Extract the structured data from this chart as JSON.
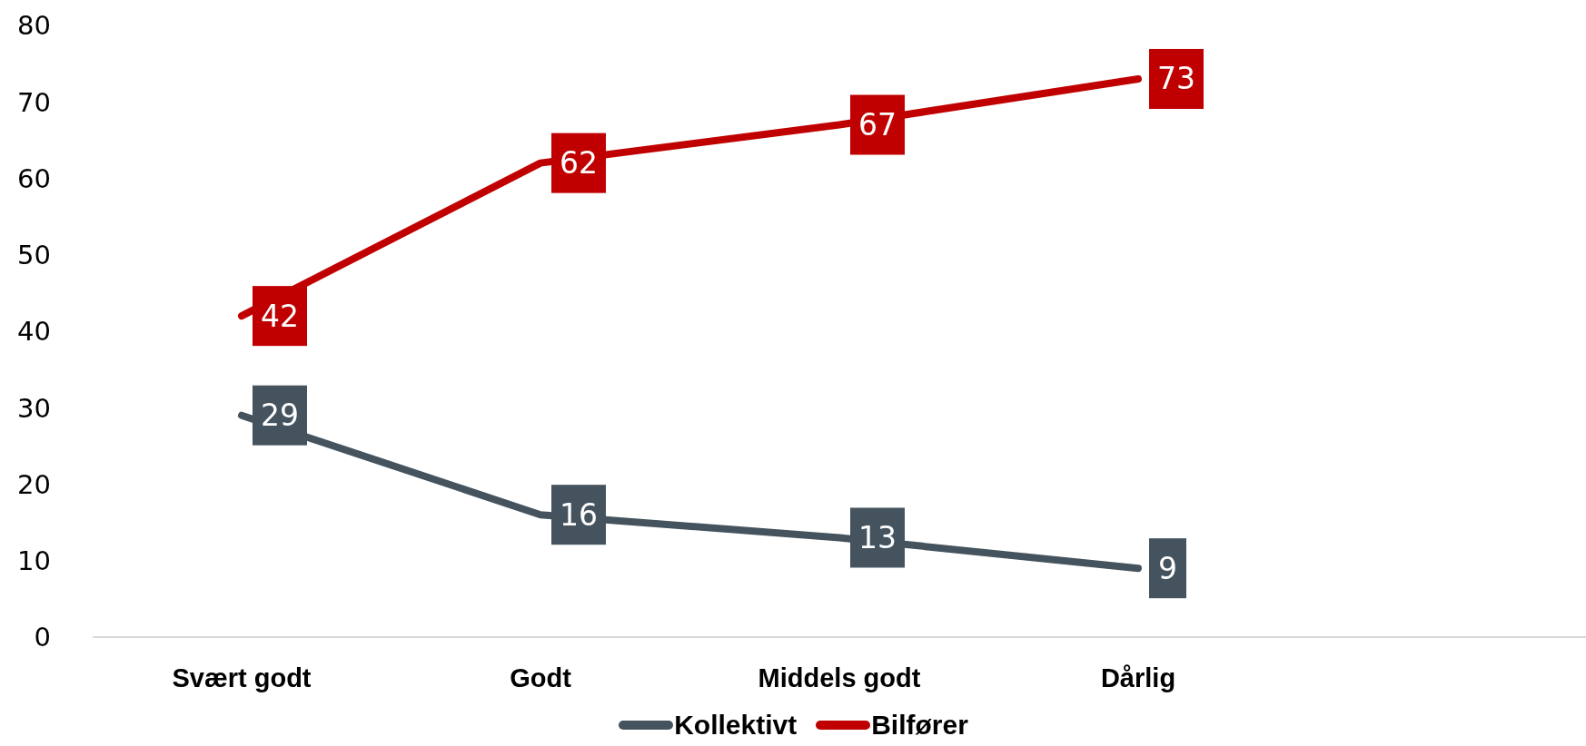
{
  "chart_data": {
    "type": "line",
    "categories": [
      "Svært godt",
      "Godt",
      "Middels godt",
      "Dårlig",
      null
    ],
    "series": [
      {
        "name": "Kollektivt",
        "color": "#44535e",
        "values": [
          29,
          16,
          13,
          9,
          null
        ]
      },
      {
        "name": "Bilfører",
        "color": "#c00000",
        "values": [
          42,
          62,
          67,
          73,
          null
        ]
      }
    ],
    "ylim": [
      0,
      80
    ],
    "yticks": [
      0,
      10,
      20,
      30,
      40,
      50,
      60,
      70,
      80
    ],
    "grid": false,
    "legend": "bottom",
    "marker": "none",
    "line_style": "solid",
    "data_labels": true
  }
}
